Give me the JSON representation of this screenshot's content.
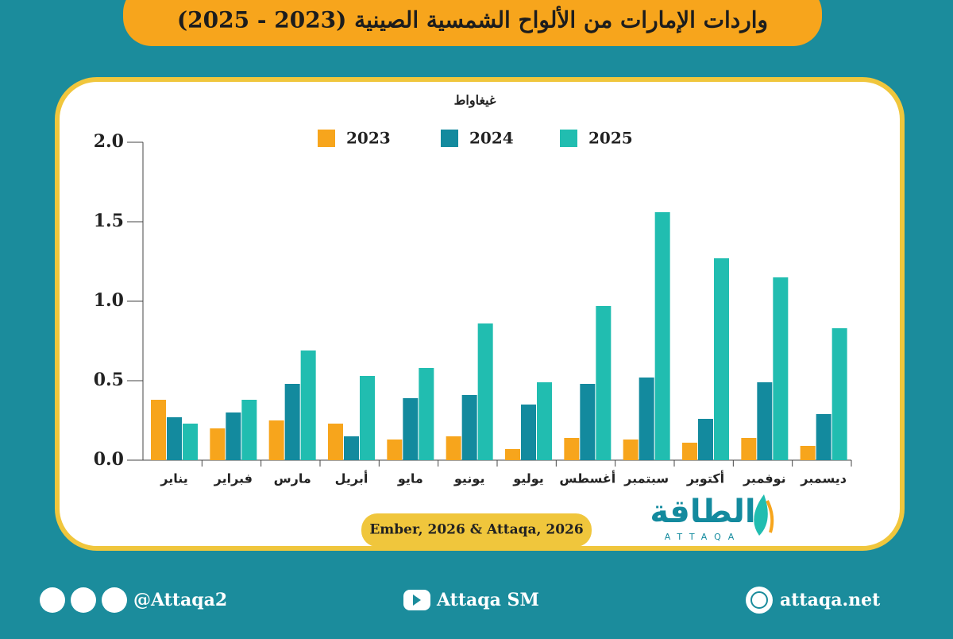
{
  "chart_data": {
    "type": "bar",
    "title": "واردات الإمارات من الألواح الشمسية الصينية (2023 - 2025)",
    "y_label": "غيغاواط",
    "categories": [
      "يناير",
      "فبراير",
      "مارس",
      "أبريل",
      "مايو",
      "يونيو",
      "يوليو",
      "أغسطس",
      "سبتمبر",
      "أكتوبر",
      "نوفمبر",
      "ديسمبر"
    ],
    "series": [
      {
        "name": "2023",
        "color": "#f7a51c",
        "values": [
          0.38,
          0.2,
          0.25,
          0.23,
          0.13,
          0.15,
          0.07,
          0.14,
          0.13,
          0.11,
          0.14,
          0.09
        ]
      },
      {
        "name": "2024",
        "color": "#138a9e",
        "values": [
          0.27,
          0.3,
          0.48,
          0.15,
          0.39,
          0.41,
          0.35,
          0.48,
          0.52,
          0.26,
          0.49,
          0.29
        ]
      },
      {
        "name": "2025",
        "color": "#21bdb0",
        "values": [
          0.23,
          0.38,
          0.69,
          0.53,
          0.58,
          0.86,
          0.49,
          0.97,
          1.56,
          1.27,
          1.15,
          0.83
        ]
      }
    ],
    "ylim": [
      0,
      2
    ],
    "yticks": [
      {
        "value": 0,
        "label": "0.0"
      },
      0.5,
      {
        "value": 1,
        "label": "1.0"
      },
      1.5,
      {
        "value": 2,
        "label": "2.0"
      }
    ],
    "source": "Ember, 2026 & Attaqa, 2026"
  },
  "logo": {
    "arabic": "الطاقة",
    "latin": "ATTAQA"
  },
  "footer": {
    "social": "@Attaqa2",
    "youtube": "Attaqa SM",
    "website": "attaqa.net"
  }
}
